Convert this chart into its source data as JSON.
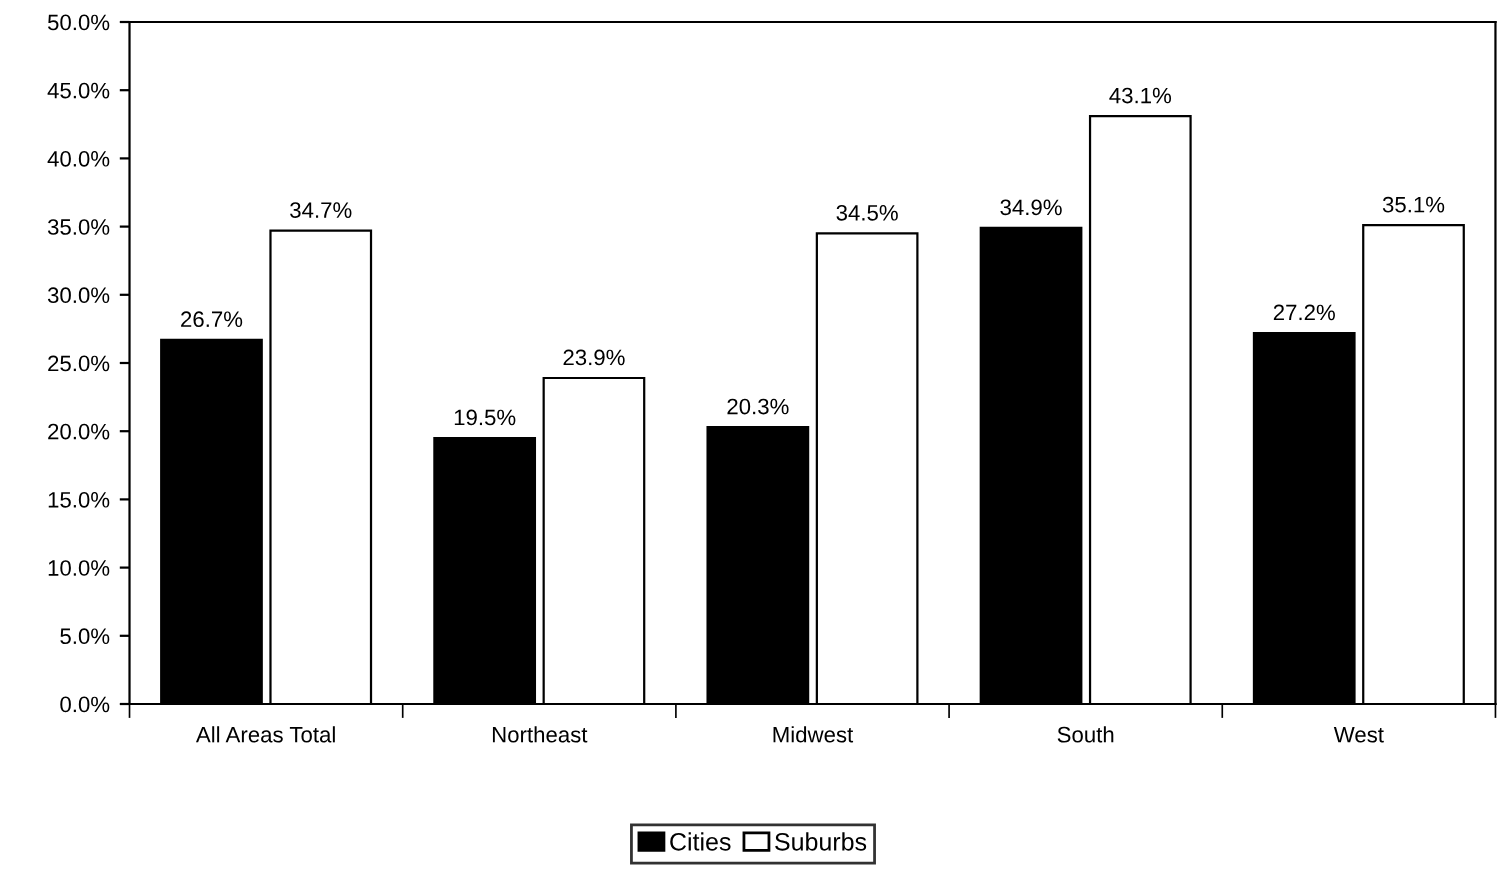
{
  "chart_data": {
    "type": "bar",
    "categories": [
      "All Areas Total",
      "Northeast",
      "Midwest",
      "South",
      "West"
    ],
    "series": [
      {
        "name": "Cities",
        "color": "#000000",
        "values": [
          26.7,
          19.5,
          20.3,
          34.9,
          27.2
        ],
        "value_labels": [
          "26.7%",
          "19.5%",
          "20.3%",
          "34.9%",
          "27.2%"
        ]
      },
      {
        "name": "Suburbs",
        "color": "#ffffff",
        "values": [
          34.7,
          23.9,
          34.5,
          43.1,
          35.1
        ],
        "value_labels": [
          "34.7%",
          "23.9%",
          "34.5%",
          "43.1%",
          "35.1%"
        ]
      }
    ],
    "ylim": [
      0,
      50
    ],
    "yticks": [
      {
        "value": 0,
        "label": "0.0%"
      },
      {
        "value": 5,
        "label": "5.0%"
      },
      {
        "value": 10,
        "label": "10.0%"
      },
      {
        "value": 15,
        "label": "15.0%"
      },
      {
        "value": 20,
        "label": "20.0%"
      },
      {
        "value": 25,
        "label": "25.0%"
      },
      {
        "value": 30,
        "label": "30.0%"
      },
      {
        "value": 35,
        "label": "35.0%"
      },
      {
        "value": 40,
        "label": "40.0%"
      },
      {
        "value": 45,
        "label": "45.0%"
      },
      {
        "value": 50,
        "label": "50.0%"
      }
    ],
    "grid": false,
    "legend": "bottom"
  }
}
